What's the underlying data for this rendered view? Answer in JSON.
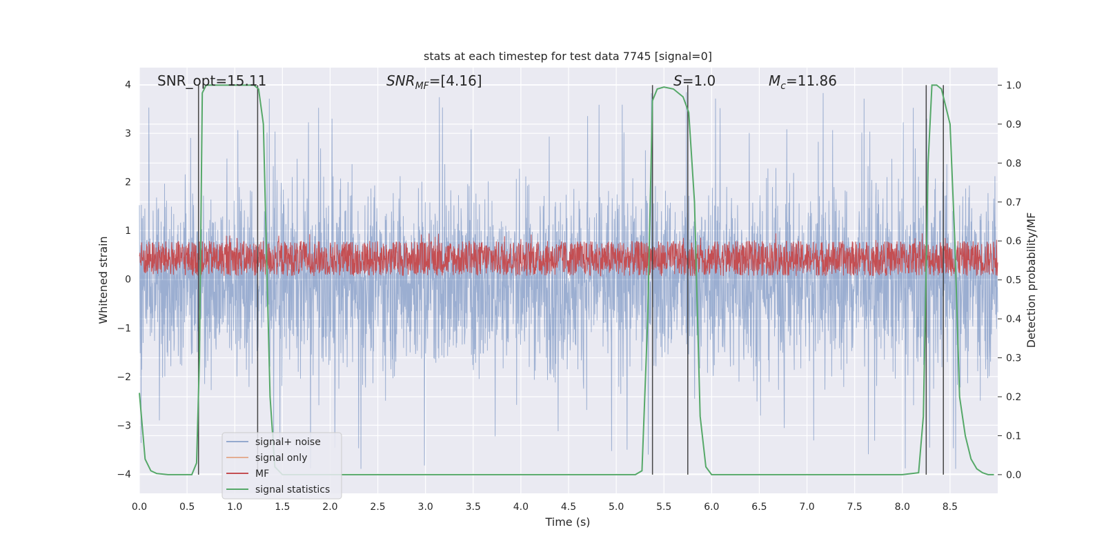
{
  "chart_data": {
    "type": "line",
    "title": "stats at each timestep for test data 7745 [signal=0]",
    "xlabel": "Time (s)",
    "ylabel": "Whitened strain",
    "ylabel_right": "Detection probability/MF",
    "xlim": [
      0.0,
      9.0
    ],
    "ylim": [
      -4.4,
      4.35
    ],
    "ylim_right": [
      -0.048,
      1.045
    ],
    "x_ticks": [
      0.0,
      0.5,
      1.0,
      1.5,
      2.0,
      2.5,
      3.0,
      3.5,
      4.0,
      4.5,
      5.0,
      5.5,
      6.0,
      6.5,
      7.0,
      7.5,
      8.0,
      8.5
    ],
    "x_tick_labels": [
      "0.0",
      "0.5",
      "1.0",
      "1.5",
      "2.0",
      "2.5",
      "3.0",
      "3.5",
      "4.0",
      "4.5",
      "5.0",
      "5.5",
      "6.0",
      "6.5",
      "7.0",
      "7.5",
      "8.0",
      "8.5"
    ],
    "y_ticks": [
      4,
      3,
      2,
      1,
      0,
      -1,
      -2,
      -3,
      -4
    ],
    "y_tick_labels": [
      "4",
      "3",
      "2",
      "1",
      "0",
      "−1",
      "−2",
      "−3",
      "−4"
    ],
    "y_right_ticks": [
      1.0,
      0.9,
      0.8,
      0.7,
      0.6,
      0.5,
      0.4,
      0.3,
      0.2,
      0.1,
      0.0
    ],
    "y_right_tick_labels": [
      "1.0",
      "0.9",
      "0.8",
      "0.7",
      "0.6",
      "0.5",
      "0.4",
      "0.3",
      "0.2",
      "0.1",
      "0.0"
    ],
    "annotations": {
      "snr_opt": "SNR_opt=15.11",
      "snr_mf_main": "SNR",
      "snr_mf_sub": "MF",
      "snr_mf_value": "=[4.16]",
      "s_main": "S",
      "s_value": "=1.0",
      "mc_main": "M",
      "mc_sub": "c",
      "mc_value": "=11.86"
    },
    "legend": {
      "placement": "lower-left",
      "entries": [
        "signal+ noise",
        "signal only",
        "MF",
        "signal statistics"
      ]
    },
    "series": [
      {
        "name": "signal statistics",
        "axis": "right",
        "color": "#55a868",
        "x": [
          0.0,
          0.06,
          0.12,
          0.18,
          0.3,
          0.45,
          0.55,
          0.6,
          0.63,
          0.66,
          0.7,
          0.8,
          1.0,
          1.2,
          1.25,
          1.3,
          1.33,
          1.37,
          1.42,
          1.5,
          2.0,
          3.0,
          4.0,
          5.0,
          5.2,
          5.27,
          5.33,
          5.38,
          5.43,
          5.5,
          5.6,
          5.7,
          5.76,
          5.82,
          5.88,
          5.94,
          6.0,
          6.5,
          7.0,
          7.5,
          8.0,
          8.17,
          8.22,
          8.27,
          8.31,
          8.36,
          8.41,
          8.5,
          8.55,
          8.6,
          8.66,
          8.72,
          8.78,
          8.84,
          8.9,
          8.96
        ],
        "y": [
          0.21,
          0.04,
          0.01,
          0.003,
          0.0,
          0.0,
          0.0,
          0.03,
          0.3,
          0.98,
          1.0,
          1.0,
          1.0,
          1.0,
          0.99,
          0.9,
          0.6,
          0.2,
          0.02,
          0.0,
          0.0,
          0.0,
          0.0,
          0.0,
          0.0,
          0.01,
          0.4,
          0.96,
          0.99,
          0.995,
          0.99,
          0.97,
          0.93,
          0.7,
          0.15,
          0.02,
          0.0,
          0.0,
          0.0,
          0.0,
          0.0,
          0.005,
          0.15,
          0.8,
          1.0,
          1.0,
          0.99,
          0.9,
          0.6,
          0.2,
          0.1,
          0.04,
          0.015,
          0.005,
          0.0,
          0.0
        ]
      }
    ],
    "noise_series": {
      "signal_noise": {
        "name": "signal+ noise",
        "color": "#4c72b0",
        "mean": 0.0,
        "typical_range": [
          -2.5,
          2.5
        ],
        "max": 3.95,
        "min": -4.05
      },
      "signal_only": {
        "name": "signal only",
        "color": "#dd8452"
      },
      "mf": {
        "name": "MF",
        "color": "#c44e52",
        "axis": "right",
        "typical_range": [
          0.51,
          0.6
        ],
        "max": 0.62
      }
    },
    "vlines": [
      0.62,
      1.24,
      5.38,
      5.75,
      8.25,
      8.43
    ],
    "colors": {
      "background": "#eaeaf2",
      "grid": "#ffffff",
      "signal_noise": "#4c72b0",
      "signal_only": "#dd8452",
      "mf": "#c44e52",
      "statistics": "#55a868",
      "vline": "#444444"
    }
  }
}
